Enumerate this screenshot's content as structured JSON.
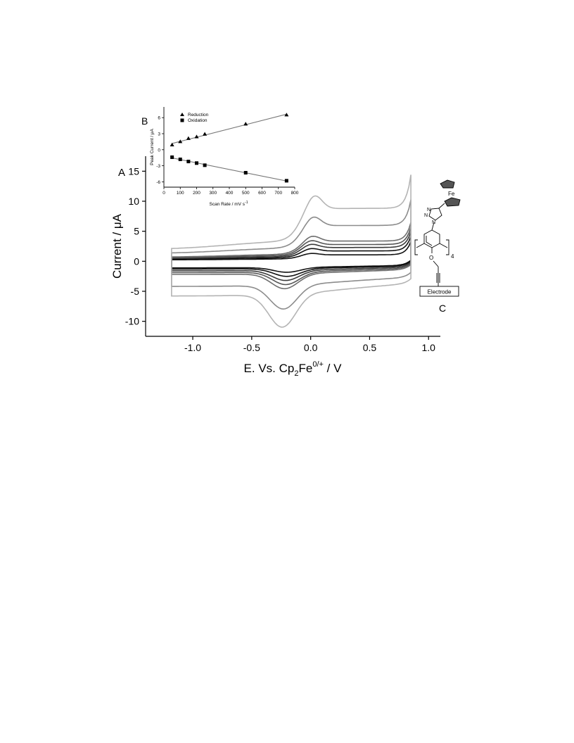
{
  "panels": {
    "a_label": "A",
    "b_label": "B",
    "c_label": "C"
  },
  "main_chart": {
    "type": "line",
    "xlabel_main": "E. Vs. Cp",
    "xlabel_sub": "2",
    "xlabel_mid": "Fe",
    "xlabel_sup": "0/+",
    "xlabel_tail": "  /  V",
    "ylabel": "Current  /  μA",
    "xlim": [
      -1.4,
      1.1
    ],
    "ylim": [
      -12.5,
      17.5
    ],
    "xticks": [
      -1.0,
      -0.5,
      0.0,
      0.5,
      1.0
    ],
    "xtick_labels": [
      "-1.0",
      "-0.5",
      "0.0",
      "0.5",
      "1.0"
    ],
    "yticks": [
      -10,
      -5,
      0,
      5,
      10,
      15
    ],
    "ytick_labels": [
      "-10",
      "-5",
      "0",
      "5",
      "10",
      "15"
    ],
    "e_start": -1.18,
    "e_end": 0.85,
    "e0": -0.1
  },
  "chart_data": [
    {
      "type": "line",
      "description_role": "cyclic voltammograms at increasing scan rates",
      "xlabel": "E. Vs. Cp2Fe0/+  /  V",
      "ylabel": "Current  /  μA",
      "xlim": [
        -1.4,
        1.1
      ],
      "ylim": [
        -12.5,
        17.5
      ],
      "series": [
        {
          "color": "#111111",
          "cap_forward": 0.4,
          "cap_reverse": -1.1,
          "peak_anodic": 0.9,
          "peak_cathodic": -0.8,
          "e_pa": 0.0,
          "e_pc": -0.2
        },
        {
          "color": "#111111",
          "cap_forward": 0.6,
          "cap_reverse": -1.3,
          "peak_anodic": 1.5,
          "peak_cathodic": -1.3,
          "e_pa": 0.0,
          "e_pc": -0.2
        },
        {
          "color": "#3a3a3a",
          "cap_forward": 0.8,
          "cap_reverse": -1.6,
          "peak_anodic": 2.0,
          "peak_cathodic": -1.7,
          "e_pa": 0.0,
          "e_pc": -0.21
        },
        {
          "color": "#555555",
          "cap_forward": 1.0,
          "cap_reverse": -1.9,
          "peak_anodic": 2.4,
          "peak_cathodic": -2.1,
          "e_pa": 0.0,
          "e_pc": -0.21
        },
        {
          "color": "#6e6e6e",
          "cap_forward": 1.2,
          "cap_reverse": -2.2,
          "peak_anodic": 2.9,
          "peak_cathodic": -2.5,
          "e_pa": 0.01,
          "e_pc": -0.22
        },
        {
          "color": "#8c8c8c",
          "cap_forward": 2.3,
          "cap_reverse": -4.2,
          "peak_anodic": 4.9,
          "peak_cathodic": -4.0,
          "e_pa": 0.02,
          "e_pc": -0.23
        },
        {
          "color": "#b4b4b4",
          "cap_forward": 3.5,
          "cap_reverse": -5.8,
          "peak_anodic": 7.1,
          "peak_cathodic": -5.5,
          "e_pa": 0.03,
          "e_pc": -0.24
        }
      ]
    },
    {
      "type": "scatter",
      "panel": "B",
      "xlabel": "Scan Rate / mV s",
      "xlabel_sup": "-1",
      "ylabel": "Peak Current  /  μA",
      "xlim": [
        0,
        800
      ],
      "ylim": [
        -7,
        8
      ],
      "xticks": [
        0,
        100,
        200,
        300,
        400,
        500,
        600,
        700,
        800
      ],
      "xtick_labels": [
        "0",
        "100",
        "200",
        "300",
        "400",
        "500",
        "600",
        "700",
        "800"
      ],
      "yticks": [
        -6,
        -3,
        0,
        3,
        6
      ],
      "ytick_labels": [
        "-6",
        "-3",
        "0",
        "3",
        "6"
      ],
      "series": [
        {
          "name": "Reduction",
          "marker": "triangle",
          "x": [
            50,
            100,
            150,
            200,
            250,
            500,
            750
          ],
          "y": [
            0.9,
            1.5,
            2.1,
            2.4,
            2.9,
            4.8,
            6.5
          ]
        },
        {
          "name": "Oxidation",
          "marker": "square",
          "x": [
            50,
            100,
            150,
            200,
            250,
            500,
            750
          ],
          "y": [
            -1.4,
            -1.8,
            -2.2,
            -2.5,
            -2.9,
            -4.3,
            -5.8
          ]
        }
      ]
    }
  ],
  "structure": {
    "fe_label": "Fe",
    "n1_label": "N",
    "n2_label": "N",
    "n3_label": "N",
    "o_label": "O",
    "subscript_4": "4",
    "electrode_label": "Electrode"
  }
}
